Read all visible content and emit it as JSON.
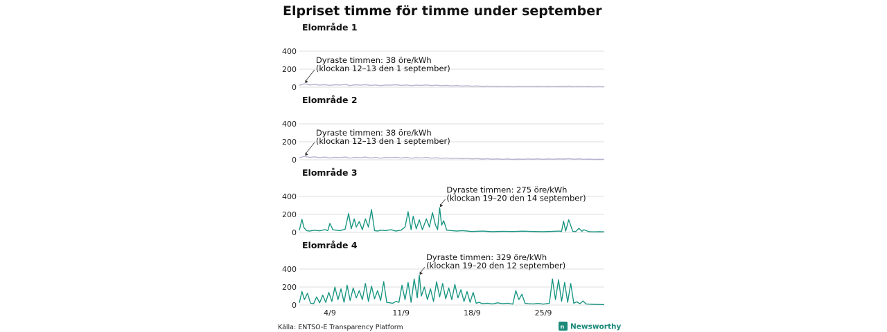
{
  "title": "Elpriset timme för timme under september",
  "source": "Källa: ENTSO-E Transparency Platform",
  "brand": "Newsworthy",
  "colors": {
    "low": "#b9b3d3",
    "high": "#1a9683",
    "brand": "#1a8a7a"
  },
  "chart_data": [
    {
      "type": "line",
      "title": "Elområde 1",
      "yticks": [
        0,
        200,
        400
      ],
      "ylim": [
        0,
        400
      ],
      "xlim": [
        1,
        31
      ],
      "xticks": [
        {
          "label": "4/9",
          "value": 4
        },
        {
          "label": "11/9",
          "value": 11
        },
        {
          "label": "18/9",
          "value": 18
        },
        {
          "label": "25/9",
          "value": 25
        }
      ],
      "color": "low",
      "peak": {
        "day": 1.54,
        "value": 38
      },
      "annotation": [
        "Dyraste timmen: 38 öre/kWh",
        "(klockan 12–13 den 1 september)"
      ],
      "series_x": [
        1.0,
        1.5,
        2.0,
        2.5,
        3.0,
        3.5,
        4.0,
        4.5,
        5.0,
        5.5,
        6.0,
        6.5,
        7.0,
        7.5,
        8.0,
        8.5,
        9.0,
        9.5,
        10.0,
        10.5,
        11.0,
        11.5,
        12.0,
        12.5,
        13.0,
        13.5,
        14.0,
        14.5,
        15.0,
        15.5,
        16.0,
        16.5,
        17.0,
        17.5,
        18.0,
        18.5,
        19.0,
        19.5,
        20.0,
        20.5,
        21.0,
        21.5,
        22.0,
        22.5,
        23.0,
        23.5,
        24.0,
        24.5,
        25.0,
        25.5,
        26.0,
        26.5,
        27.0,
        27.5,
        28.0,
        28.5,
        29.0,
        29.5,
        30.0,
        30.5,
        31.0
      ],
      "series_y": [
        20,
        38,
        25,
        30,
        22,
        28,
        20,
        26,
        24,
        30,
        18,
        27,
        22,
        28,
        20,
        25,
        18,
        24,
        22,
        27,
        20,
        24,
        18,
        22,
        20,
        25,
        18,
        22,
        16,
        20,
        14,
        18,
        12,
        16,
        10,
        14,
        8,
        12,
        6,
        10,
        5,
        9,
        4,
        8,
        5,
        9,
        6,
        10,
        5,
        9,
        6,
        10,
        8,
        12,
        6,
        10,
        5,
        8,
        4,
        6,
        4
      ]
    },
    {
      "type": "line",
      "title": "Elområde 2",
      "yticks": [
        0,
        200,
        400
      ],
      "ylim": [
        0,
        400
      ],
      "xlim": [
        1,
        31
      ],
      "xticks": [
        {
          "label": "4/9",
          "value": 4
        },
        {
          "label": "11/9",
          "value": 11
        },
        {
          "label": "18/9",
          "value": 18
        },
        {
          "label": "25/9",
          "value": 25
        }
      ],
      "color": "low",
      "peak": {
        "day": 1.54,
        "value": 38
      },
      "annotation": [
        "Dyraste timmen: 38 öre/kWh",
        "(klockan 12–13 den 1 september)"
      ],
      "series_x": [
        1.0,
        1.5,
        2.0,
        2.5,
        3.0,
        3.5,
        4.0,
        4.5,
        5.0,
        5.5,
        6.0,
        6.5,
        7.0,
        7.5,
        8.0,
        8.5,
        9.0,
        9.5,
        10.0,
        10.5,
        11.0,
        11.5,
        12.0,
        12.5,
        13.0,
        13.5,
        14.0,
        14.5,
        15.0,
        15.5,
        16.0,
        16.5,
        17.0,
        17.5,
        18.0,
        18.5,
        19.0,
        19.5,
        20.0,
        20.5,
        21.0,
        21.5,
        22.0,
        22.5,
        23.0,
        23.5,
        24.0,
        24.5,
        25.0,
        25.5,
        26.0,
        26.5,
        27.0,
        27.5,
        28.0,
        28.5,
        29.0,
        29.5,
        30.0,
        30.5,
        31.0
      ],
      "series_y": [
        22,
        38,
        26,
        32,
        22,
        30,
        20,
        28,
        24,
        30,
        18,
        28,
        22,
        30,
        20,
        26,
        18,
        26,
        22,
        28,
        20,
        26,
        18,
        24,
        20,
        26,
        18,
        22,
        16,
        20,
        14,
        18,
        12,
        16,
        10,
        14,
        8,
        12,
        6,
        10,
        5,
        9,
        4,
        8,
        5,
        9,
        6,
        10,
        5,
        9,
        6,
        10,
        8,
        12,
        6,
        10,
        5,
        8,
        4,
        6,
        4
      ]
    },
    {
      "type": "line",
      "title": "Elområde 3",
      "yticks": [
        0,
        200,
        400
      ],
      "ylim": [
        0,
        400
      ],
      "xlim": [
        1,
        31
      ],
      "xticks": [
        {
          "label": "4/9",
          "value": 4
        },
        {
          "label": "11/9",
          "value": 11
        },
        {
          "label": "18/9",
          "value": 18
        },
        {
          "label": "25/9",
          "value": 25
        }
      ],
      "color": "high",
      "peak": {
        "day": 14.8,
        "value": 275
      },
      "annotation": [
        "Dyraste timmen: 275 öre/kWh",
        "(klockan 19–20 den 14 september)"
      ],
      "series_x": [
        1.0,
        1.25,
        1.45,
        1.7,
        2.0,
        2.5,
        3.0,
        3.5,
        3.8,
        4.0,
        4.3,
        4.6,
        5.0,
        5.5,
        5.85,
        6.1,
        6.4,
        6.6,
        6.9,
        7.2,
        7.5,
        7.8,
        8.1,
        8.4,
        8.7,
        9.0,
        9.5,
        10.0,
        10.5,
        11.0,
        11.4,
        11.7,
        12.0,
        12.2,
        12.5,
        12.8,
        13.1,
        13.5,
        13.8,
        14.1,
        14.4,
        14.6,
        14.8,
        15.0,
        15.2,
        15.5,
        16.0,
        16.5,
        17.0,
        18.0,
        19.0,
        20.0,
        21.0,
        22.0,
        23.0,
        24.0,
        25.0,
        26.0,
        26.5,
        26.8,
        27.0,
        27.2,
        27.5,
        27.9,
        28.2,
        28.5,
        28.8,
        29.0,
        29.5,
        30.0,
        30.5,
        31.0
      ],
      "series_y": [
        25,
        145,
        55,
        20,
        15,
        25,
        18,
        30,
        20,
        100,
        30,
        25,
        20,
        35,
        210,
        40,
        150,
        60,
        120,
        30,
        150,
        60,
        255,
        20,
        15,
        25,
        20,
        30,
        15,
        25,
        60,
        230,
        30,
        180,
        40,
        140,
        30,
        150,
        60,
        220,
        80,
        30,
        275,
        80,
        130,
        25,
        20,
        15,
        20,
        10,
        15,
        8,
        12,
        10,
        14,
        10,
        8,
        12,
        15,
        12,
        125,
        15,
        140,
        12,
        10,
        45,
        12,
        30,
        8,
        6,
        8,
        6
      ]
    },
    {
      "type": "line",
      "title": "Elområde 4",
      "yticks": [
        0,
        200,
        400
      ],
      "ylim": [
        0,
        400
      ],
      "xlim": [
        1,
        31
      ],
      "xticks": [
        {
          "label": "4/9",
          "value": 4
        },
        {
          "label": "11/9",
          "value": 11
        },
        {
          "label": "18/9",
          "value": 18
        },
        {
          "label": "25/9",
          "value": 25
        }
      ],
      "color": "high",
      "peak": {
        "day": 12.8,
        "value": 329
      },
      "annotation": [
        "Dyraste timmen: 329 öre/kWh",
        "(klockan 19–20 den 12 september)"
      ],
      "series_x": [
        1.0,
        1.25,
        1.5,
        1.8,
        2.1,
        2.4,
        2.7,
        3.0,
        3.3,
        3.6,
        3.9,
        4.2,
        4.5,
        4.8,
        5.1,
        5.4,
        5.7,
        6.0,
        6.3,
        6.6,
        6.9,
        7.2,
        7.5,
        7.8,
        8.1,
        8.4,
        8.7,
        9.0,
        9.3,
        9.6,
        9.9,
        10.2,
        10.5,
        10.8,
        11.1,
        11.4,
        11.7,
        12.0,
        12.3,
        12.6,
        12.8,
        13.0,
        13.3,
        13.6,
        13.9,
        14.2,
        14.5,
        14.8,
        15.1,
        15.4,
        15.7,
        16.0,
        16.3,
        16.6,
        16.9,
        17.2,
        17.5,
        17.8,
        18.1,
        18.4,
        18.7,
        19.0,
        19.5,
        20.0,
        20.5,
        21.0,
        21.5,
        22.0,
        22.3,
        22.6,
        22.9,
        23.2,
        23.5,
        24.0,
        24.5,
        25.0,
        25.3,
        25.6,
        25.9,
        26.2,
        26.5,
        26.8,
        27.1,
        27.4,
        27.7,
        28.0,
        28.3,
        28.6,
        28.9,
        29.2,
        29.5,
        30.0,
        30.5,
        31.0
      ],
      "series_y": [
        25,
        150,
        60,
        130,
        20,
        15,
        90,
        25,
        110,
        30,
        140,
        40,
        200,
        60,
        180,
        30,
        220,
        50,
        190,
        80,
        160,
        60,
        240,
        40,
        210,
        70,
        160,
        50,
        260,
        30,
        25,
        20,
        40,
        30,
        220,
        60,
        250,
        30,
        290,
        80,
        329,
        100,
        200,
        60,
        180,
        40,
        260,
        90,
        240,
        70,
        190,
        60,
        230,
        80,
        170,
        40,
        150,
        30,
        140,
        20,
        30,
        15,
        20,
        12,
        25,
        15,
        20,
        10,
        160,
        60,
        120,
        20,
        15,
        12,
        18,
        10,
        15,
        20,
        290,
        60,
        280,
        40,
        250,
        30,
        240,
        20,
        35,
        15,
        45,
        12,
        10,
        8,
        6,
        5
      ]
    }
  ]
}
